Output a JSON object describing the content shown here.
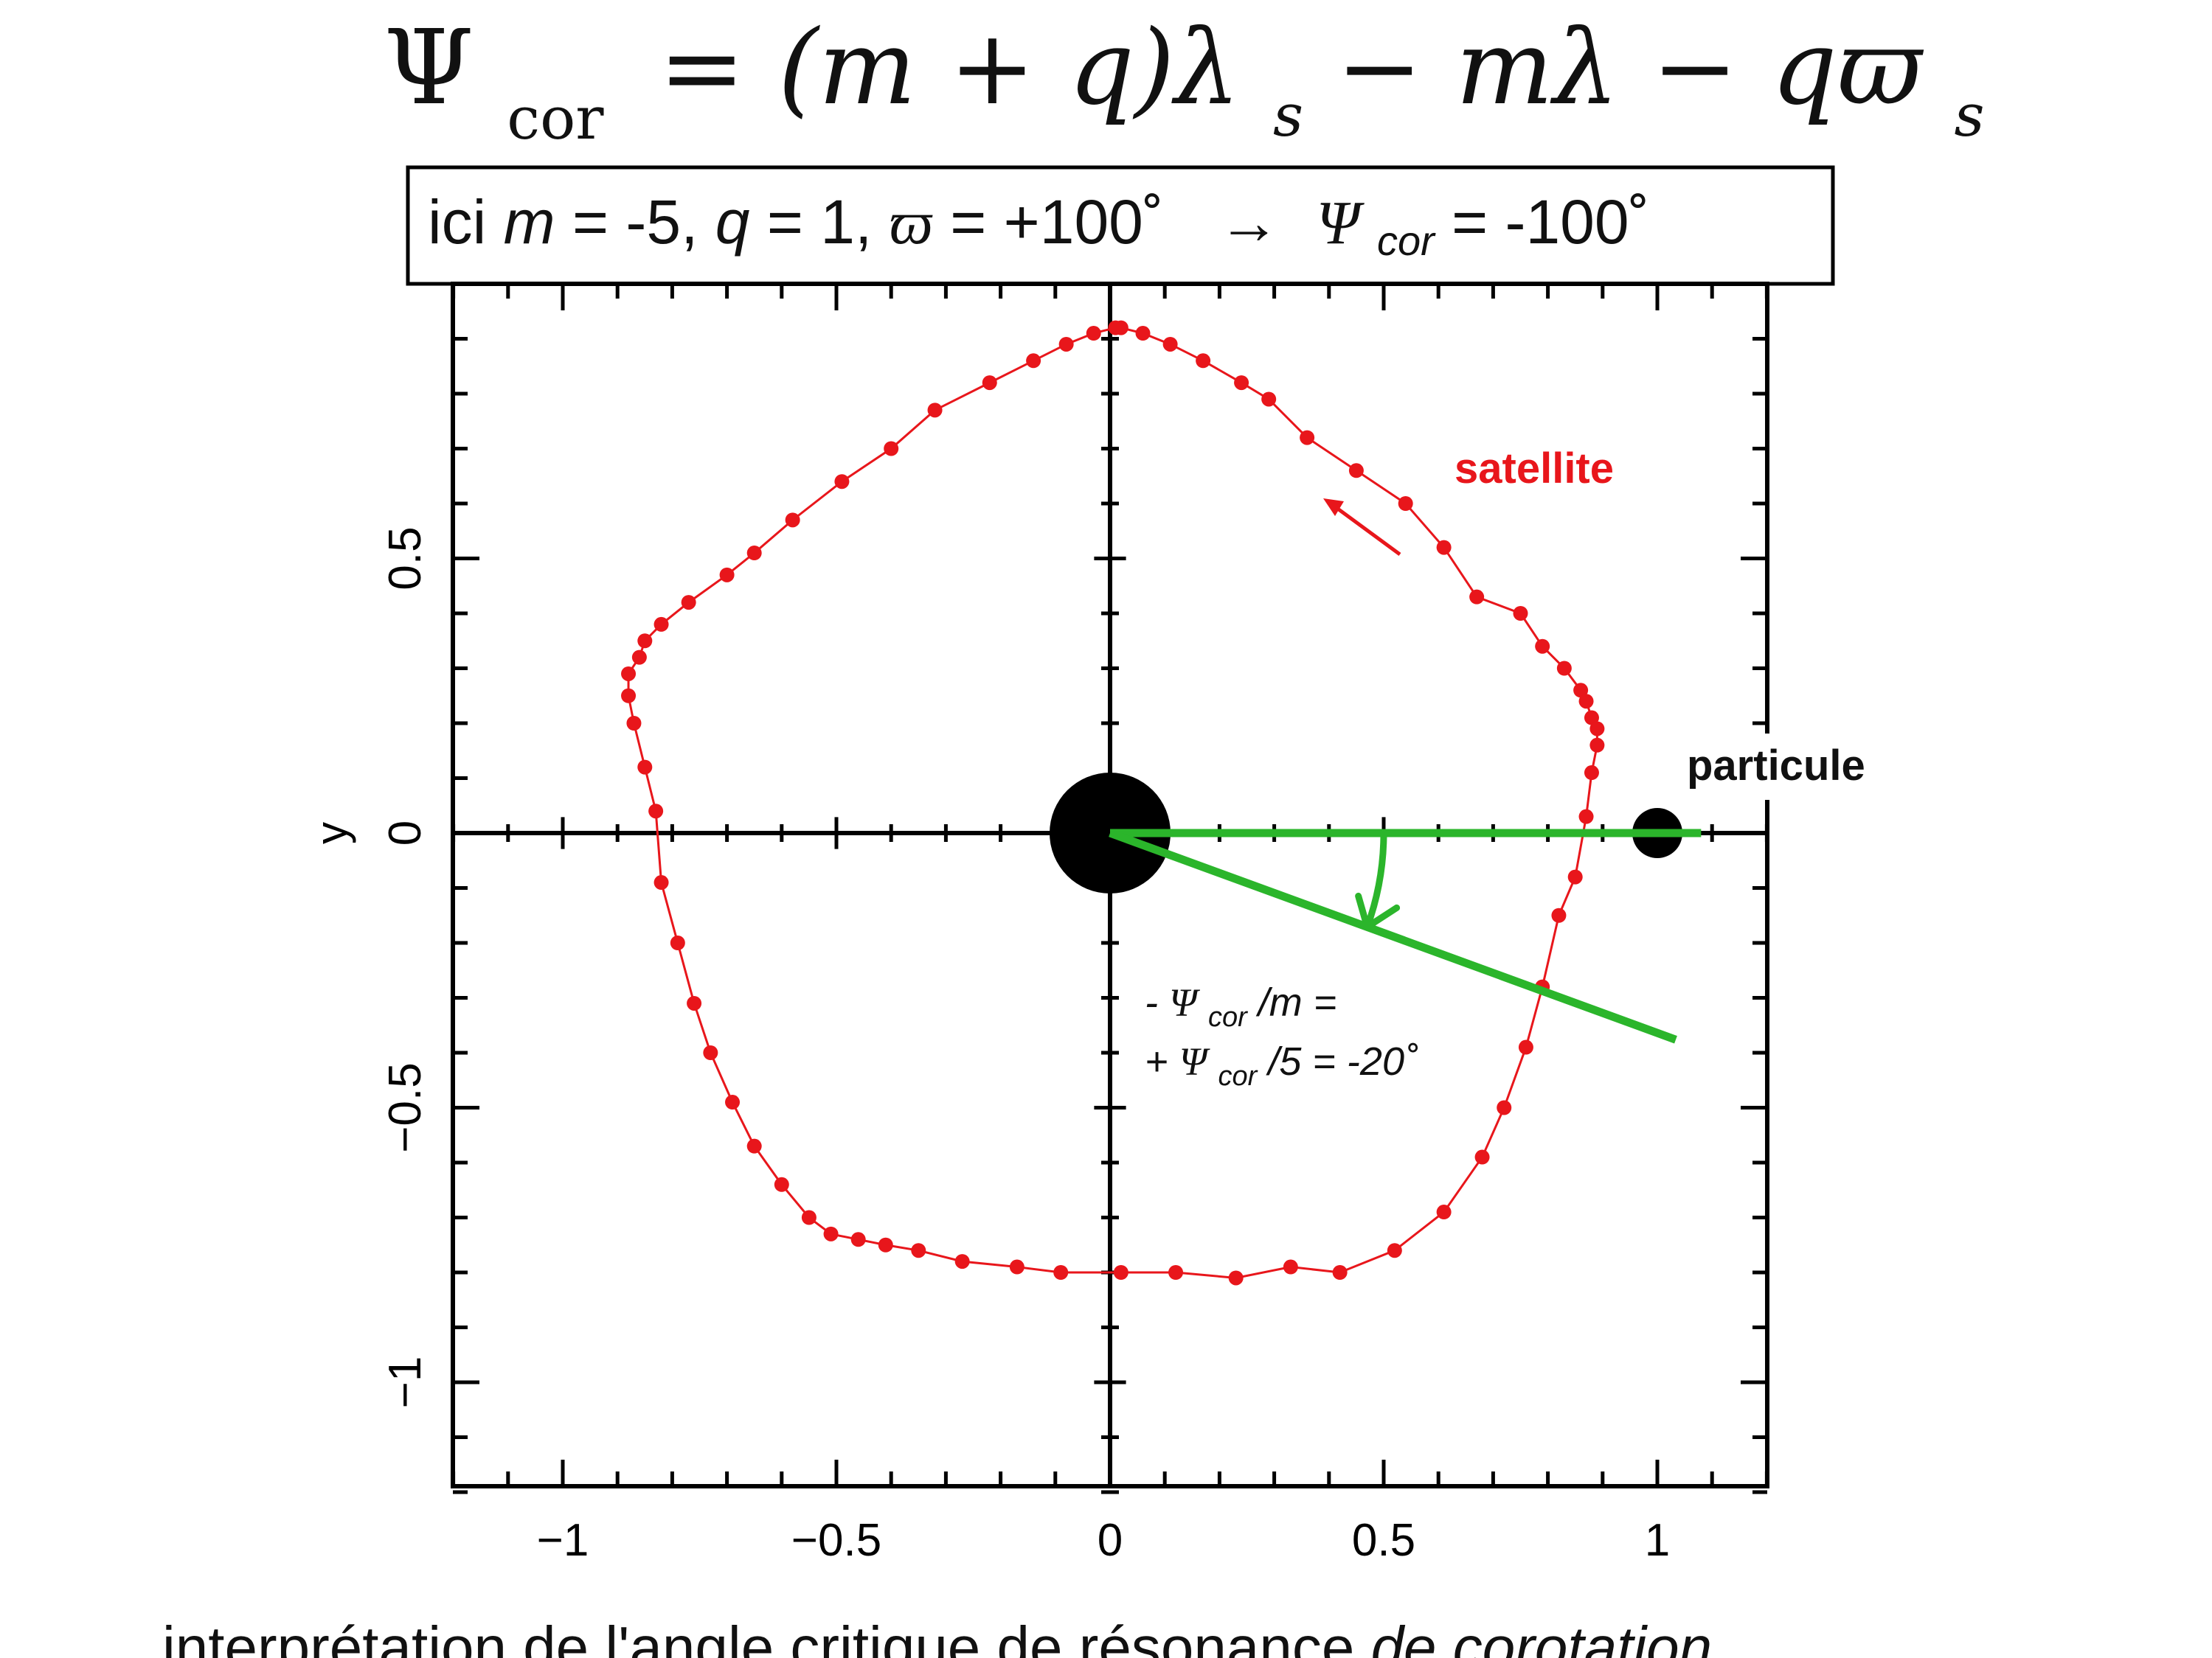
{
  "formula": {
    "lhs": "Ψ",
    "lhs_sub": "cor",
    "rhs_a": "= (m + q)λ",
    "rhs_a_sub": "s",
    "rhs_b": " − mλ − qϖ",
    "rhs_b_sub": "s"
  },
  "params_box": {
    "ici": "ici ",
    "m_sym": "m",
    "m_val": " = -5, ",
    "q_sym": "q",
    "q_val": " = 1, ",
    "varpi_sym": "ϖ",
    "varpi_val": " = +100˚",
    "arrow": "→",
    "psi_sym": "Ψ",
    "psi_sub": "cor",
    "psi_val": "= -100˚"
  },
  "chart_data": {
    "type": "scatter",
    "title": "",
    "xlabel": "",
    "ylabel": "y",
    "xlim": [
      -1.2,
      1.2
    ],
    "ylim": [
      -1.2,
      1.0
    ],
    "xticks": [
      -1,
      -0.5,
      0,
      0.5,
      1
    ],
    "xtick_labels": [
      "−1",
      "−0.5",
      "0",
      "0.5",
      "1"
    ],
    "yticks": [
      -1,
      -0.5,
      0,
      0.5
    ],
    "ytick_labels": [
      "−1",
      "−0.5",
      "0",
      "0.5"
    ],
    "series": [
      {
        "name": "satellite",
        "color": "#e8161b",
        "points": [
          [
            0.02,
            0.92
          ],
          [
            0.06,
            0.91
          ],
          [
            0.11,
            0.89
          ],
          [
            0.17,
            0.86
          ],
          [
            0.24,
            0.82
          ],
          [
            0.29,
            0.79
          ],
          [
            0.36,
            0.72
          ],
          [
            0.45,
            0.66
          ],
          [
            0.54,
            0.6
          ],
          [
            0.61,
            0.52
          ],
          [
            0.67,
            0.43
          ],
          [
            0.75,
            0.4
          ],
          [
            0.79,
            0.34
          ],
          [
            0.83,
            0.3
          ],
          [
            0.86,
            0.26
          ],
          [
            0.87,
            0.24
          ],
          [
            0.88,
            0.21
          ],
          [
            0.89,
            0.19
          ],
          [
            0.89,
            0.16
          ],
          [
            0.88,
            0.11
          ],
          [
            0.87,
            0.03
          ],
          [
            0.85,
            -0.08
          ],
          [
            0.82,
            -0.15
          ],
          [
            0.79,
            -0.28
          ],
          [
            0.76,
            -0.39
          ],
          [
            0.72,
            -0.5
          ],
          [
            0.68,
            -0.59
          ],
          [
            0.61,
            -0.69
          ],
          [
            0.52,
            -0.76
          ],
          [
            0.42,
            -0.8
          ],
          [
            0.33,
            -0.79
          ],
          [
            0.23,
            -0.81
          ],
          [
            0.12,
            -0.8
          ],
          [
            0.02,
            -0.8
          ],
          [
            -0.09,
            -0.8
          ],
          [
            -0.17,
            -0.79
          ],
          [
            -0.27,
            -0.78
          ],
          [
            -0.35,
            -0.76
          ],
          [
            -0.41,
            -0.75
          ],
          [
            -0.46,
            -0.74
          ],
          [
            -0.51,
            -0.73
          ],
          [
            -0.55,
            -0.7
          ],
          [
            -0.6,
            -0.64
          ],
          [
            -0.65,
            -0.57
          ],
          [
            -0.69,
            -0.49
          ],
          [
            -0.73,
            -0.4
          ],
          [
            -0.76,
            -0.31
          ],
          [
            -0.79,
            -0.2
          ],
          [
            -0.82,
            -0.09
          ],
          [
            -0.83,
            0.04
          ],
          [
            -0.85,
            0.12
          ],
          [
            -0.87,
            0.2
          ],
          [
            -0.88,
            0.25
          ],
          [
            -0.88,
            0.29
          ],
          [
            -0.86,
            0.32
          ],
          [
            -0.85,
            0.35
          ],
          [
            -0.82,
            0.38
          ],
          [
            -0.77,
            0.42
          ],
          [
            -0.7,
            0.47
          ],
          [
            -0.65,
            0.51
          ],
          [
            -0.58,
            0.57
          ],
          [
            -0.49,
            0.64
          ],
          [
            -0.4,
            0.7
          ],
          [
            -0.32,
            0.77
          ],
          [
            -0.22,
            0.82
          ],
          [
            -0.14,
            0.86
          ],
          [
            -0.08,
            0.89
          ],
          [
            -0.03,
            0.91
          ],
          [
            0.01,
            0.92
          ]
        ]
      }
    ],
    "planet": {
      "x": 0,
      "y": 0
    },
    "particle": {
      "x": 1.0,
      "y": 0
    },
    "reference_line": {
      "x0": 0,
      "y0": 0,
      "x1": 1.08,
      "y1": 0
    },
    "rotated_line": {
      "x0": 0,
      "y0": 0,
      "angle_deg": -20,
      "length": 1.1
    },
    "annotations": {
      "satellite_label": "satellite",
      "particule_label": "particule",
      "angle_line1_prefix": "-",
      "angle_line1_psi": "Ψ",
      "angle_line1_sub": "cor",
      "angle_line1_suffix": "/m =",
      "angle_line2_prefix": "+",
      "angle_line2_psi": "Ψ",
      "angle_line2_sub": "cor",
      "angle_line2_suffix": "/5 = -20˚"
    },
    "colors": {
      "satellite": "#e8161b",
      "angle": "#2bb52b",
      "axes": "#000000"
    }
  },
  "caption": {
    "normal": "interprétation de l'angle critique de résonance ",
    "italic": "de corotation"
  }
}
